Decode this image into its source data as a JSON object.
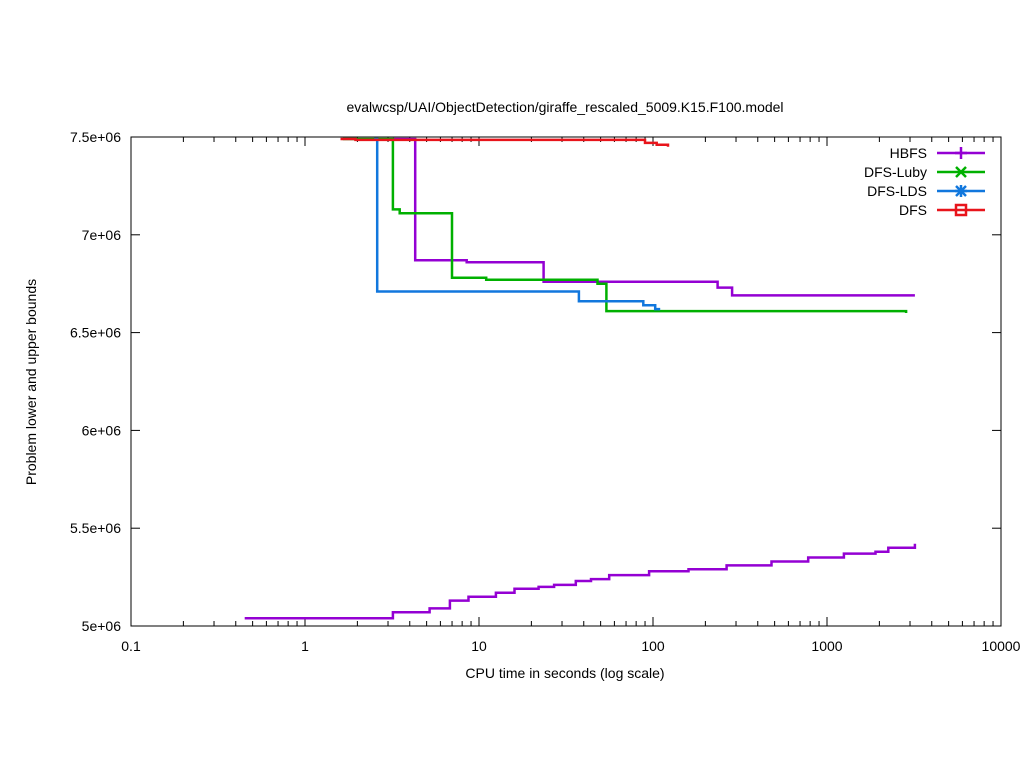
{
  "chart_data": {
    "type": "line",
    "title": "evalwcsp/UAI/ObjectDetection/giraffe_rescaled_5009.K15.F100.model",
    "xlabel": "CPU time in seconds (log scale)",
    "ylabel": "Problem lower and upper bounds",
    "x_scale": "log",
    "xlim": [
      0.1,
      10000
    ],
    "ylim": [
      5000000,
      7500000
    ],
    "x_ticks": [
      {
        "value": 0.1,
        "label": "0.1"
      },
      {
        "value": 1,
        "label": "1"
      },
      {
        "value": 10,
        "label": "10"
      },
      {
        "value": 100,
        "label": "100"
      },
      {
        "value": 1000,
        "label": "1000"
      },
      {
        "value": 10000,
        "label": "10000"
      }
    ],
    "y_ticks": [
      {
        "value": 5000000,
        "label": "5e+06"
      },
      {
        "value": 5500000,
        "label": "5.5e+06"
      },
      {
        "value": 6000000,
        "label": "6e+06"
      },
      {
        "value": 6500000,
        "label": "6.5e+06"
      },
      {
        "value": 7000000,
        "label": "7e+06"
      },
      {
        "value": 7500000,
        "label": "7.5e+06"
      }
    ],
    "grid": false,
    "legend_position": "top-right",
    "series": [
      {
        "name": "HBFS",
        "color": "#9400d3",
        "marker": "plus",
        "step": true,
        "points": [
          [
            3.2,
            7490000
          ],
          [
            4.3,
            7490000
          ],
          [
            4.3,
            6870000
          ],
          [
            8.5,
            6870000
          ],
          [
            8.5,
            6860000
          ],
          [
            23.5,
            6860000
          ],
          [
            23.5,
            6760000
          ],
          [
            235,
            6760000
          ],
          [
            235,
            6730000
          ],
          [
            285,
            6730000
          ],
          [
            285,
            6690000
          ],
          [
            3200,
            6690000
          ]
        ]
      },
      {
        "name": "HBFS",
        "color": "#9400d3",
        "marker": "plus",
        "step": true,
        "points": [
          [
            0.45,
            5040000
          ],
          [
            3.2,
            5040000
          ],
          [
            3.2,
            5070000
          ],
          [
            5.2,
            5070000
          ],
          [
            5.2,
            5090000
          ],
          [
            6.8,
            5090000
          ],
          [
            6.8,
            5130000
          ],
          [
            8.7,
            5130000
          ],
          [
            8.7,
            5150000
          ],
          [
            12.5,
            5150000
          ],
          [
            12.5,
            5170000
          ],
          [
            16,
            5170000
          ],
          [
            16,
            5190000
          ],
          [
            22,
            5190000
          ],
          [
            22,
            5200000
          ],
          [
            27,
            5200000
          ],
          [
            27,
            5210000
          ],
          [
            36,
            5210000
          ],
          [
            36,
            5230000
          ],
          [
            44,
            5230000
          ],
          [
            44,
            5240000
          ],
          [
            56,
            5240000
          ],
          [
            56,
            5260000
          ],
          [
            95,
            5260000
          ],
          [
            95,
            5280000
          ],
          [
            160,
            5280000
          ],
          [
            160,
            5290000
          ],
          [
            265,
            5290000
          ],
          [
            265,
            5310000
          ],
          [
            480,
            5310000
          ],
          [
            480,
            5330000
          ],
          [
            780,
            5330000
          ],
          [
            780,
            5350000
          ],
          [
            1250,
            5350000
          ],
          [
            1250,
            5370000
          ],
          [
            1900,
            5370000
          ],
          [
            1900,
            5380000
          ],
          [
            2250,
            5380000
          ],
          [
            2250,
            5400000
          ],
          [
            3200,
            5400000
          ],
          [
            3200,
            5420000
          ]
        ]
      },
      {
        "name": "DFS-Luby",
        "color": "#00b000",
        "marker": "cross",
        "step": true,
        "points": [
          [
            1.65,
            7490000
          ],
          [
            3.2,
            7490000
          ],
          [
            3.2,
            7130000
          ],
          [
            3.5,
            7130000
          ],
          [
            3.5,
            7110000
          ],
          [
            7,
            7110000
          ],
          [
            7,
            6780000
          ],
          [
            11,
            6780000
          ],
          [
            11,
            6770000
          ],
          [
            48,
            6770000
          ],
          [
            48,
            6750000
          ],
          [
            54,
            6750000
          ],
          [
            54,
            6610000
          ],
          [
            2850,
            6610000
          ],
          [
            2850,
            6600000
          ]
        ]
      },
      {
        "name": "DFS-LDS",
        "color": "#1177dd",
        "marker": "star",
        "step": true,
        "points": [
          [
            2.5,
            7490000
          ],
          [
            2.6,
            7490000
          ],
          [
            2.6,
            6710000
          ],
          [
            37.5,
            6710000
          ],
          [
            37.5,
            6660000
          ],
          [
            88,
            6660000
          ],
          [
            88,
            6640000
          ],
          [
            103,
            6640000
          ],
          [
            103,
            6620000
          ],
          [
            110,
            6620000
          ]
        ]
      },
      {
        "name": "DFS",
        "color": "#e8141b",
        "marker": "square",
        "step": true,
        "points": [
          [
            1.6,
            7490000
          ],
          [
            1.95,
            7490000
          ],
          [
            1.95,
            7485000
          ],
          [
            90,
            7485000
          ],
          [
            90,
            7470000
          ],
          [
            105,
            7470000
          ],
          [
            105,
            7460000
          ],
          [
            122,
            7460000
          ],
          [
            122,
            7450000
          ]
        ]
      }
    ],
    "legend": [
      {
        "label": "HBFS",
        "color": "#9400d3",
        "marker": "plus"
      },
      {
        "label": "DFS-Luby",
        "color": "#00b000",
        "marker": "cross"
      },
      {
        "label": "DFS-LDS",
        "color": "#1177dd",
        "marker": "star"
      },
      {
        "label": "DFS",
        "color": "#e8141b",
        "marker": "square"
      }
    ]
  }
}
